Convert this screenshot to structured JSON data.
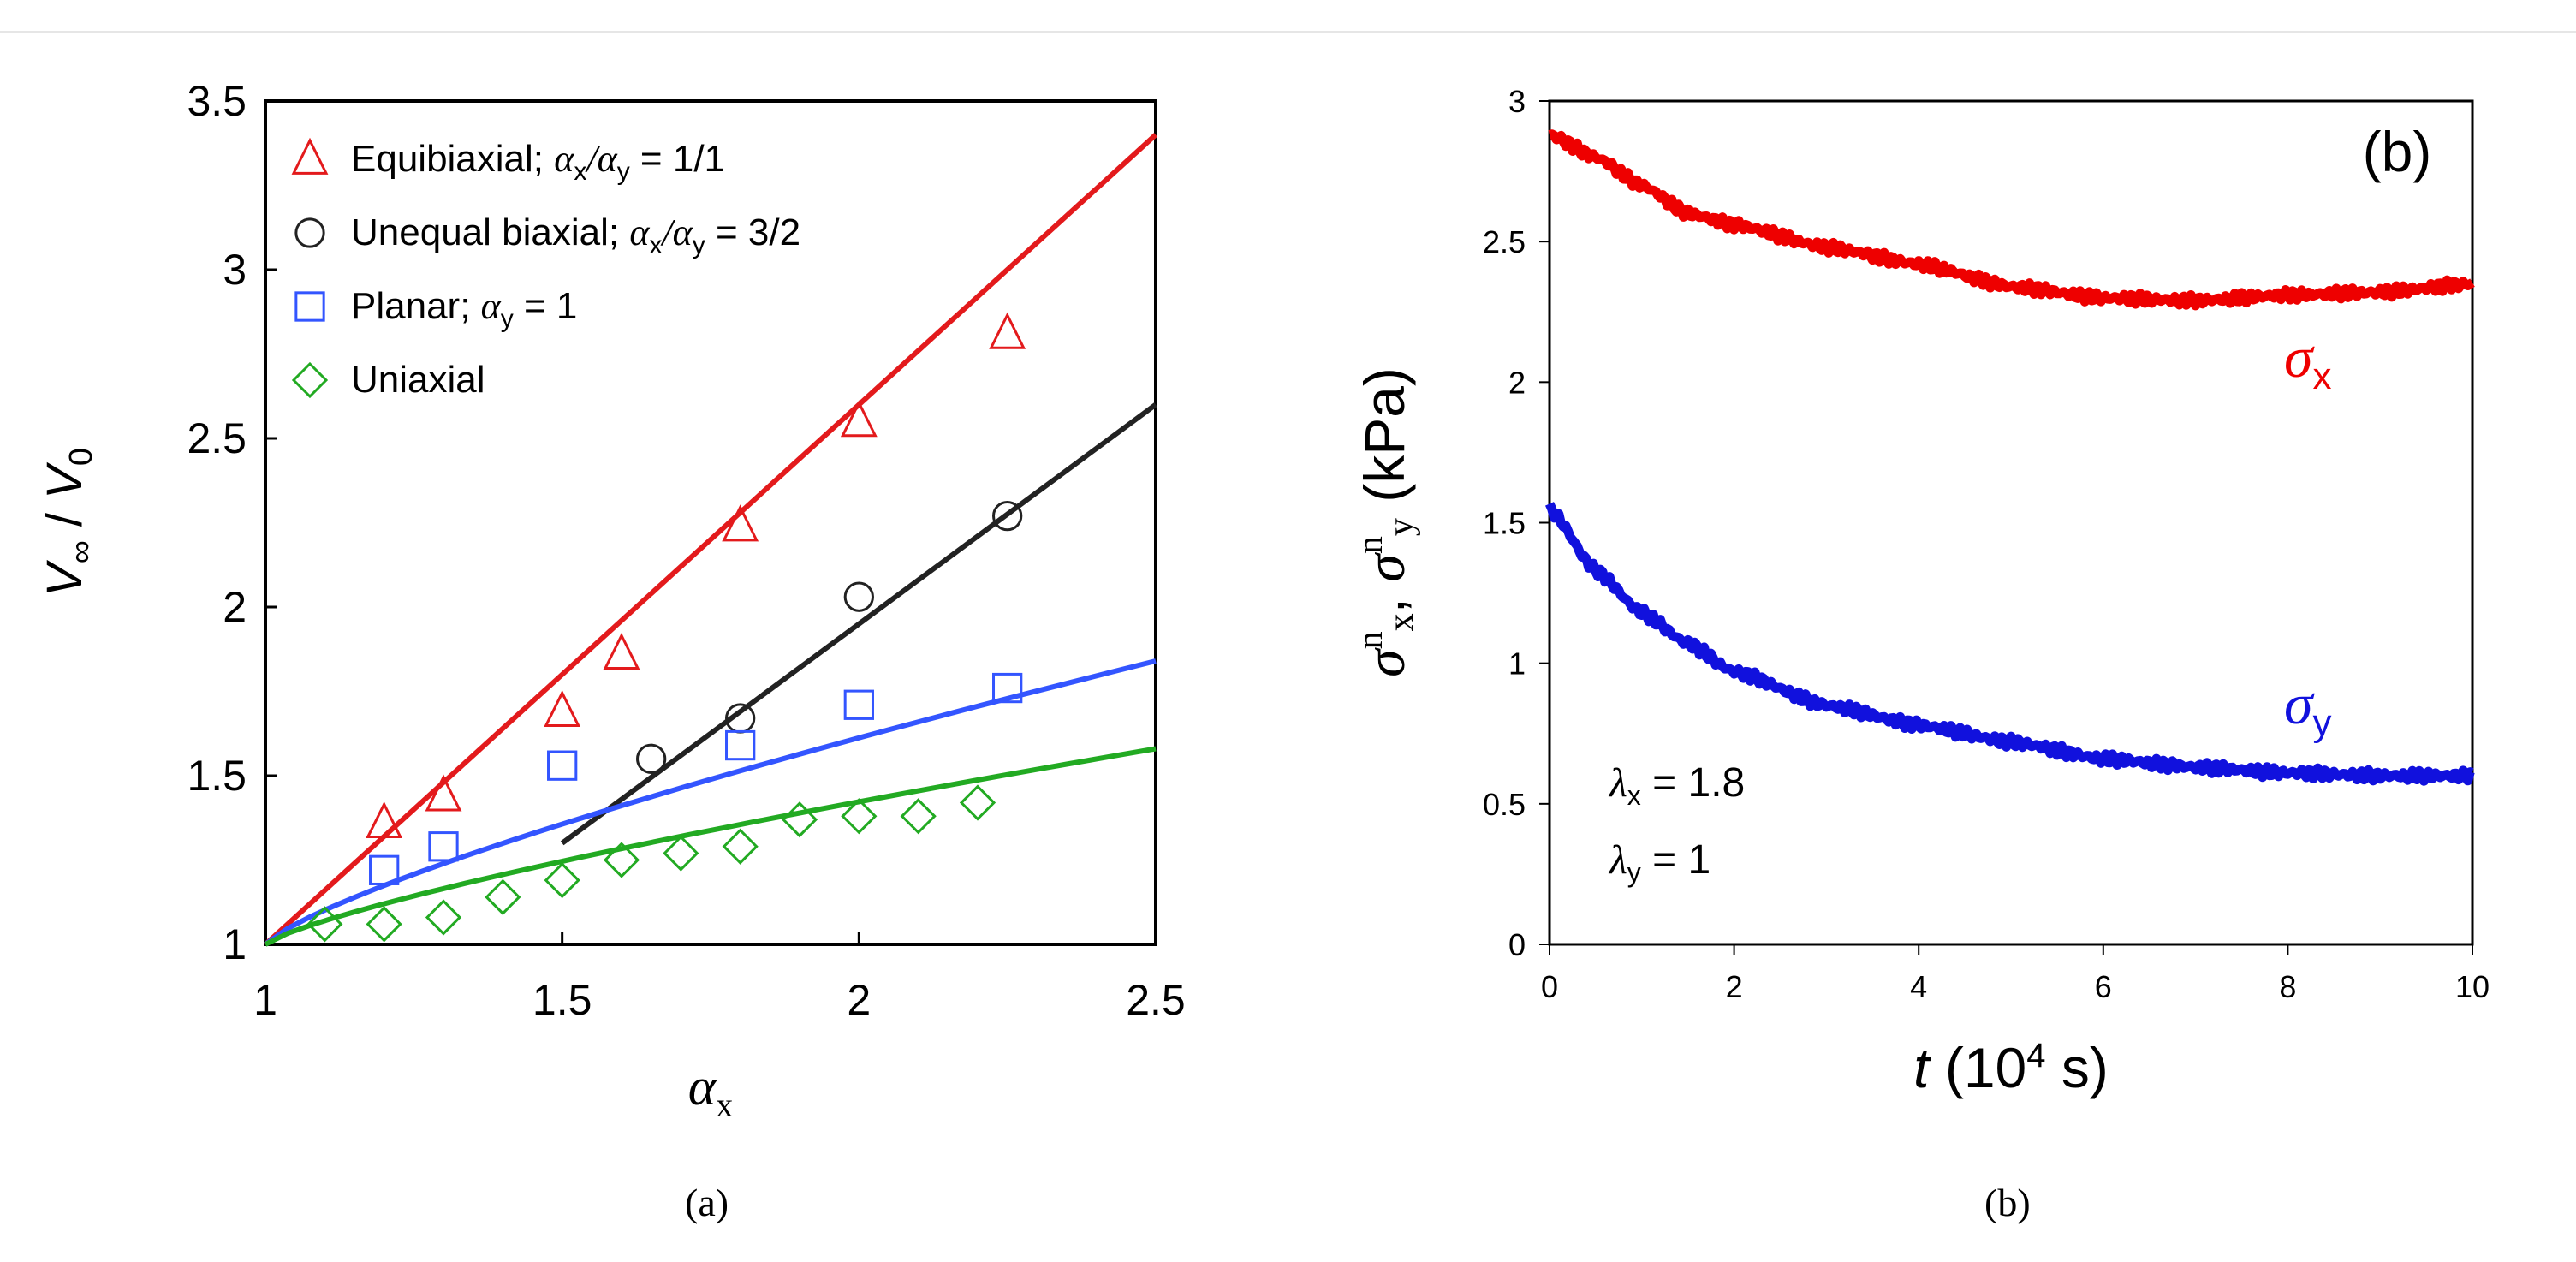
{
  "chart_data": [
    {
      "panel": "a",
      "type": "scatter",
      "caption": "(a)",
      "xlabel_symbol": "α",
      "xlabel_sub": "x",
      "ylabel_num": "V",
      "ylabel_num_sub": "∞",
      "ylabel_sep": " / ",
      "ylabel_den": "V",
      "ylabel_den_sub": "0",
      "xlim": [
        1,
        2.5
      ],
      "ylim": [
        1,
        3.5
      ],
      "xticks": [
        1,
        1.5,
        2,
        2.5
      ],
      "xtick_labels": [
        "1",
        "1.5",
        "2",
        "2.5"
      ],
      "yticks": [
        1,
        1.5,
        2,
        2.5,
        3,
        3.5
      ],
      "ytick_labels": [
        "1",
        "1.5",
        "2",
        "2.5",
        "3",
        "3.5"
      ],
      "legend_position": "top-left",
      "series": [
        {
          "name": "Equibiaxial",
          "legend": {
            "text": "Equibiaxial; ",
            "r1": "α",
            "s1": "x",
            "r2": "/α",
            "s2": "y",
            "tail": " = 1/1"
          },
          "marker": "triangle",
          "color": "#e31a1c",
          "points": [
            [
              1.2,
              1.36
            ],
            [
              1.3,
              1.44
            ],
            [
              1.5,
              1.69
            ],
            [
              1.6,
              1.86
            ],
            [
              1.8,
              2.24
            ],
            [
              2.0,
              2.55
            ],
            [
              2.25,
              2.81
            ]
          ],
          "fit_line": [
            [
              1.0,
              1.0
            ],
            [
              2.5,
              3.4
            ]
          ],
          "fit_kind": "line"
        },
        {
          "name": "Unequal biaxial",
          "legend": {
            "text": "Unequal biaxial; ",
            "r1": "α",
            "s1": "x",
            "r2": "/α",
            "s2": "y",
            "tail": " = 3/2"
          },
          "marker": "circle",
          "color": "#222222",
          "points": [
            [
              1.65,
              1.55
            ],
            [
              1.8,
              1.67
            ],
            [
              2.0,
              2.03
            ],
            [
              2.25,
              2.27
            ]
          ],
          "fit_line": [
            [
              1.5,
              1.3
            ],
            [
              2.5,
              2.6
            ]
          ],
          "fit_kind": "line"
        },
        {
          "name": "Planar",
          "legend": {
            "text": "Planar; ",
            "r1": "α",
            "s1": "y",
            "r2": "",
            "s2": "",
            "tail": " = 1"
          },
          "marker": "square",
          "color": "#3355ff",
          "points": [
            [
              1.2,
              1.22
            ],
            [
              1.3,
              1.29
            ],
            [
              1.5,
              1.53
            ],
            [
              1.8,
              1.59
            ],
            [
              2.0,
              1.71
            ],
            [
              2.25,
              1.76
            ]
          ],
          "fit_line": [
            [
              1.0,
              1.0
            ],
            [
              2.5,
              1.84
            ]
          ],
          "fit_kind": "curve"
        },
        {
          "name": "Uniaxial",
          "legend": {
            "text": "Uniaxial",
            "r1": "",
            "s1": "",
            "r2": "",
            "s2": "",
            "tail": ""
          },
          "marker": "diamond",
          "color": "#22aa22",
          "points": [
            [
              1.1,
              1.06
            ],
            [
              1.2,
              1.06
            ],
            [
              1.3,
              1.08
            ],
            [
              1.4,
              1.14
            ],
            [
              1.5,
              1.19
            ],
            [
              1.6,
              1.25
            ],
            [
              1.7,
              1.27
            ],
            [
              1.8,
              1.29
            ],
            [
              1.9,
              1.37
            ],
            [
              2.0,
              1.38
            ],
            [
              2.1,
              1.38
            ],
            [
              2.2,
              1.42
            ]
          ],
          "fit_line": [
            [
              1.0,
              1.0
            ],
            [
              2.5,
              1.58
            ]
          ],
          "fit_kind": "curve"
        }
      ]
    },
    {
      "panel": "b",
      "type": "line",
      "caption": "(b)",
      "panel_label": "(b)",
      "xlabel_var": "t",
      "xlabel_pre": " (10",
      "xlabel_sup": "4",
      "xlabel_post": " s)",
      "ylabel_s1": "σ",
      "ylabel_sup1": "n",
      "ylabel_sub1": "x",
      "ylabel_comma": ", ",
      "ylabel_s2": "σ",
      "ylabel_sup2": "n",
      "ylabel_sub2": "y",
      "ylabel_unit": " (kPa)",
      "xlim": [
        0,
        10
      ],
      "ylim": [
        0,
        3
      ],
      "xticks": [
        0,
        2,
        4,
        6,
        8,
        10
      ],
      "xtick_labels": [
        "0",
        "2",
        "4",
        "6",
        "8",
        "10"
      ],
      "yticks": [
        0,
        0.5,
        1,
        1.5,
        2,
        2.5,
        3
      ],
      "ytick_labels": [
        "0",
        "0.5",
        "1",
        "1.5",
        "2",
        "2.5",
        "3"
      ],
      "annotation_lx_sym": "λ",
      "annotation_lx_sub": "x",
      "annotation_lx_val": " = 1.8",
      "annotation_ly_sym": "λ",
      "annotation_ly_sub": "y",
      "annotation_ly_val": " = 1",
      "series": [
        {
          "name": "σx",
          "label_sym": "σ",
          "label_sub": "x",
          "color": "#ee0000",
          "x": [
            0,
            0.5,
            1,
            1.5,
            2,
            3,
            4,
            5,
            6,
            7,
            8,
            9,
            10
          ],
          "y": [
            2.88,
            2.8,
            2.7,
            2.6,
            2.56,
            2.48,
            2.42,
            2.34,
            2.3,
            2.29,
            2.31,
            2.32,
            2.35
          ]
        },
        {
          "name": "σy",
          "label_sym": "σ",
          "label_sub": "y",
          "color": "#1111dd",
          "x": [
            0,
            0.5,
            1,
            1.5,
            2,
            3,
            4,
            5,
            6,
            7,
            8,
            9,
            10
          ],
          "y": [
            1.55,
            1.33,
            1.18,
            1.07,
            0.97,
            0.85,
            0.78,
            0.72,
            0.66,
            0.63,
            0.61,
            0.6,
            0.6
          ]
        }
      ]
    }
  ]
}
